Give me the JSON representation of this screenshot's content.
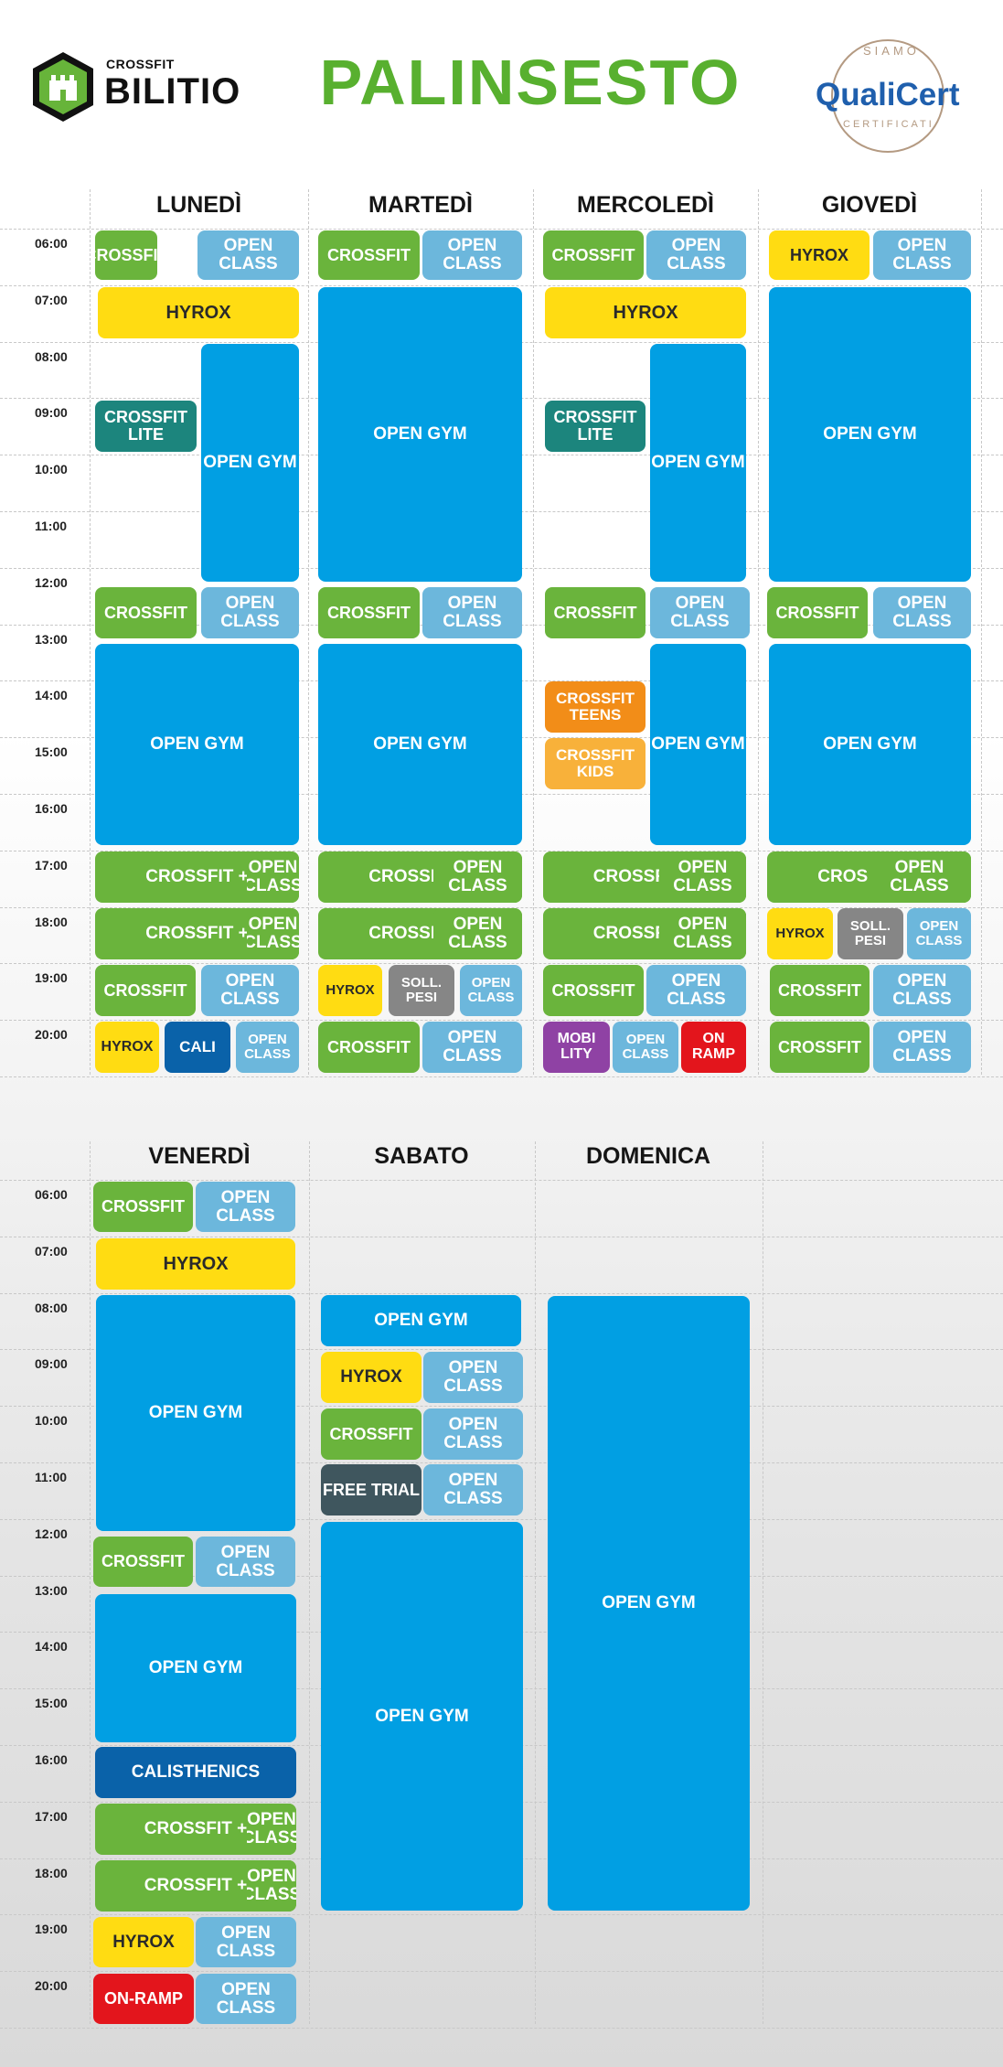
{
  "header": {
    "brand_small": "CROSSFIT",
    "brand_big": "BILITIO",
    "title": "PALINSESTO",
    "cert_top": "SIAMO",
    "cert_name": "QualiCert",
    "cert_bottom": "CERTIFICATI"
  },
  "times": [
    "06:00",
    "07:00",
    "08:00",
    "09:00",
    "10:00",
    "11:00",
    "12:00",
    "13:00",
    "14:00",
    "15:00",
    "16:00",
    "17:00",
    "18:00",
    "19:00",
    "20:00"
  ],
  "colors": {
    "crossfit": "#6ab43c",
    "open_class": "#6cb7dc",
    "open_gym": "#019fe3",
    "hyrox": "#ffdc12",
    "crossfit_lite": "#1c857d",
    "crossfit_teens": "#f28d18",
    "crossfit_kids": "#f8b13a",
    "soll_pesi": "#868686",
    "mobility": "#8f42a4",
    "on_ramp": "#e3151c",
    "calisthenics": "#0a62a9",
    "free_trial": "#3f565e",
    "title": "#58b02f"
  },
  "sections": [
    {
      "days": [
        {
          "name": "LUNEDÌ",
          "blocks": [
            {
              "label": "CROSSFIT",
              "cls": "green"
            },
            {
              "label": "OPEN CLASS",
              "cls": "lblue"
            },
            {
              "label": "HYROX",
              "cls": "yellow"
            },
            {
              "label": "CROSSFIT LITE",
              "cls": "teal"
            },
            {
              "label": "OPEN GYM",
              "cls": "blue"
            },
            {
              "label": "CROSSFIT",
              "cls": "green"
            },
            {
              "label": "OPEN CLASS",
              "cls": "lblue"
            },
            {
              "label": "OPEN GYM",
              "cls": "blue"
            },
            {
              "label": "CROSSFIT +",
              "cls": "green"
            },
            {
              "label": "OPEN CLASS",
              "cls": "green"
            },
            {
              "label": "CROSSFIT +",
              "cls": "green"
            },
            {
              "label": "OPEN CLASS",
              "cls": "green"
            },
            {
              "label": "CROSSFIT",
              "cls": "green"
            },
            {
              "label": "OPEN CLASS",
              "cls": "lblue"
            },
            {
              "label": "HYROX",
              "cls": "yellow"
            },
            {
              "label": "CALI",
              "cls": "dblue"
            },
            {
              "label": "OPEN CLASS",
              "cls": "lblue"
            }
          ]
        },
        {
          "name": "MARTEDÌ",
          "blocks": [
            {
              "label": "CROSSFIT",
              "cls": "green"
            },
            {
              "label": "OPEN CLASS",
              "cls": "lblue"
            },
            {
              "label": "OPEN GYM",
              "cls": "blue"
            },
            {
              "label": "CROSSFIT",
              "cls": "green"
            },
            {
              "label": "OPEN CLASS",
              "cls": "lblue"
            },
            {
              "label": "OPEN GYM",
              "cls": "blue"
            },
            {
              "label": "CROSSFIT +",
              "cls": "green"
            },
            {
              "label": "OPEN CLASS",
              "cls": "green"
            },
            {
              "label": "CROSSFIT +",
              "cls": "green"
            },
            {
              "label": "OPEN CLASS",
              "cls": "green"
            },
            {
              "label": "HYROX",
              "cls": "yellow"
            },
            {
              "label": "SOLL. PESI",
              "cls": "gray"
            },
            {
              "label": "OPEN CLASS",
              "cls": "lblue"
            },
            {
              "label": "CROSSFIT",
              "cls": "green"
            },
            {
              "label": "OPEN CLASS",
              "cls": "lblue"
            }
          ]
        },
        {
          "name": "MERCOLEDÌ",
          "blocks": [
            {
              "label": "CROSSFIT",
              "cls": "green"
            },
            {
              "label": "OPEN CLASS",
              "cls": "lblue"
            },
            {
              "label": "HYROX",
              "cls": "yellow"
            },
            {
              "label": "CROSSFIT LITE",
              "cls": "teal"
            },
            {
              "label": "OPEN GYM",
              "cls": "blue"
            },
            {
              "label": "CROSSFIT",
              "cls": "green"
            },
            {
              "label": "OPEN CLASS",
              "cls": "lblue"
            },
            {
              "label": "CROSSFIT TEENS",
              "cls": "orange"
            },
            {
              "label": "CROSSFIT KIDS",
              "cls": "lorange"
            },
            {
              "label": "OPEN GYM",
              "cls": "blue"
            },
            {
              "label": "CROSSFIT +",
              "cls": "green"
            },
            {
              "label": "OPEN CLASS",
              "cls": "green"
            },
            {
              "label": "CROSSFIT +",
              "cls": "green"
            },
            {
              "label": "OPEN CLASS",
              "cls": "green"
            },
            {
              "label": "CROSSFIT",
              "cls": "green"
            },
            {
              "label": "OPEN CLASS",
              "cls": "lblue"
            },
            {
              "label": "MOBI LITY",
              "cls": "purple"
            },
            {
              "label": "OPEN CLASS",
              "cls": "lblue"
            },
            {
              "label": "ON RAMP",
              "cls": "red"
            }
          ]
        },
        {
          "name": "GIOVEDÌ",
          "blocks": [
            {
              "label": "HYROX",
              "cls": "yellow"
            },
            {
              "label": "OPEN CLASS",
              "cls": "lblue"
            },
            {
              "label": "OPEN GYM",
              "cls": "blue"
            },
            {
              "label": "CROSSFIT",
              "cls": "green"
            },
            {
              "label": "OPEN CLASS",
              "cls": "lblue"
            },
            {
              "label": "OPEN GYM",
              "cls": "blue"
            },
            {
              "label": "CROSSFIT +",
              "cls": "green"
            },
            {
              "label": "OPEN CLASS",
              "cls": "green"
            },
            {
              "label": "HYROX",
              "cls": "yellow"
            },
            {
              "label": "SOLL. PESI",
              "cls": "gray"
            },
            {
              "label": "OPEN CLASS",
              "cls": "lblue"
            },
            {
              "label": "CROSSFIT",
              "cls": "green"
            },
            {
              "label": "OPEN CLASS",
              "cls": "lblue"
            },
            {
              "label": "CROSSFIT",
              "cls": "green"
            },
            {
              "label": "OPEN CLASS",
              "cls": "lblue"
            }
          ]
        }
      ]
    },
    {
      "days": [
        {
          "name": "VENERDÌ",
          "blocks": [
            {
              "label": "CROSSFIT",
              "cls": "green"
            },
            {
              "label": "OPEN CLASS",
              "cls": "lblue"
            },
            {
              "label": "HYROX",
              "cls": "yellow"
            },
            {
              "label": "OPEN GYM",
              "cls": "blue"
            },
            {
              "label": "CROSSFIT",
              "cls": "green"
            },
            {
              "label": "OPEN CLASS",
              "cls": "lblue"
            },
            {
              "label": "OPEN GYM",
              "cls": "blue"
            },
            {
              "label": "CALISTHENICS",
              "cls": "dblue"
            },
            {
              "label": "CROSSFIT +",
              "cls": "green"
            },
            {
              "label": "OPEN CLASS",
              "cls": "green"
            },
            {
              "label": "CROSSFIT +",
              "cls": "green"
            },
            {
              "label": "OPEN CLASS",
              "cls": "green"
            },
            {
              "label": "HYROX",
              "cls": "yellow"
            },
            {
              "label": "OPEN CLASS",
              "cls": "lblue"
            },
            {
              "label": "ON-RAMP",
              "cls": "red"
            },
            {
              "label": "OPEN CLASS",
              "cls": "lblue"
            }
          ]
        },
        {
          "name": "SABATO",
          "blocks": [
            {
              "label": "OPEN GYM",
              "cls": "blue"
            },
            {
              "label": "HYROX",
              "cls": "yellow"
            },
            {
              "label": "OPEN CLASS",
              "cls": "lblue"
            },
            {
              "label": "CROSSFIT",
              "cls": "green"
            },
            {
              "label": "OPEN CLASS",
              "cls": "lblue"
            },
            {
              "label": "FREE TRIAL",
              "cls": "slate"
            },
            {
              "label": "OPEN CLASS",
              "cls": "lblue"
            },
            {
              "label": "OPEN GYM",
              "cls": "blue"
            }
          ]
        },
        {
          "name": "DOMENICA",
          "blocks": [
            {
              "label": "OPEN GYM",
              "cls": "blue"
            }
          ]
        }
      ]
    }
  ]
}
